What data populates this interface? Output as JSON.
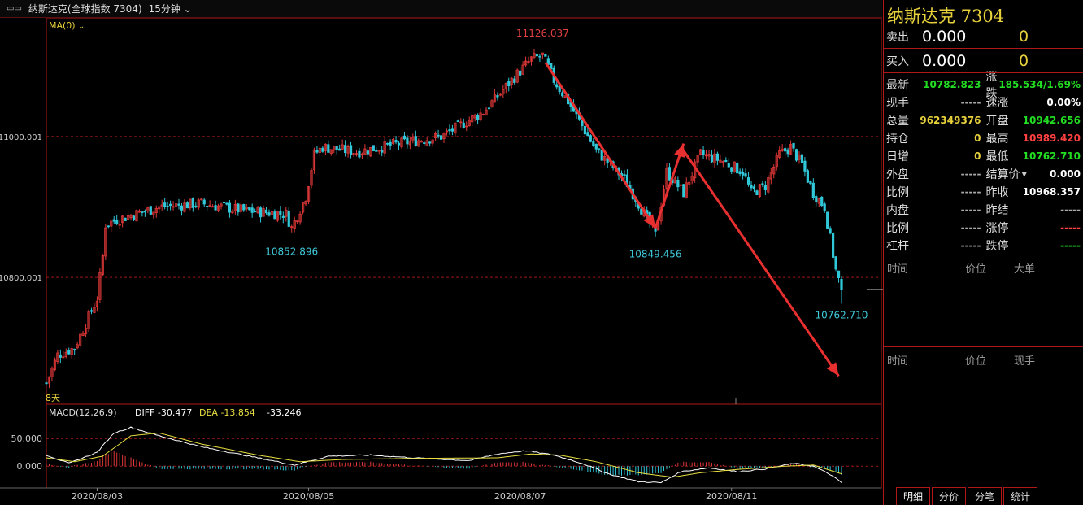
{
  "window": {
    "title": "纳斯达克(全球指数 7304)",
    "period": "15分钟"
  },
  "chart_labels": {
    "ma": "MA(0)",
    "days": "8天",
    "macd_title": "MACD(12,26,9)",
    "diff": "DIFF -30.477",
    "dea": "DEA -13.854",
    "macd_val": "-33.246"
  },
  "chart_data": {
    "type": "candlestick",
    "y_ticks": [
      "11000.001",
      "10800.001"
    ],
    "y_tick_values": [
      11000.001,
      10800.001
    ],
    "ylim": [
      10620,
      11150
    ],
    "macd_ticks": [
      "50.000",
      "0.000"
    ],
    "macd_tick_values": [
      50,
      0
    ],
    "macd_ylim": [
      -35,
      90
    ],
    "x_ticks": [
      "2020/08/03",
      "2020/08/05",
      "2020/08/07",
      "2020/08/11"
    ],
    "x_tick_positions": [
      18,
      93,
      168,
      243
    ],
    "n_bars": 283,
    "annotations": [
      {
        "text": "11126.037",
        "bar": 176,
        "value": 11126.037,
        "color": "#e04040",
        "pos": "above"
      },
      {
        "text": "10852.896",
        "bar": 87,
        "value": 10852.896,
        "color": "#3fc8d8",
        "pos": "below"
      },
      {
        "text": "10849.456",
        "bar": 216,
        "value": 10849.456,
        "color": "#3fc8d8",
        "pos": "below"
      },
      {
        "text": "10762.710",
        "bar": 282,
        "value": 10762.71,
        "color": "#3fc8d8",
        "pos": "below"
      }
    ],
    "anchors": [
      [
        0,
        10650
      ],
      [
        4,
        10690
      ],
      [
        10,
        10700
      ],
      [
        18,
        10770
      ],
      [
        20,
        10830
      ],
      [
        21,
        10875
      ],
      [
        25,
        10882
      ],
      [
        40,
        10900
      ],
      [
        55,
        10905
      ],
      [
        70,
        10895
      ],
      [
        85,
        10890
      ],
      [
        87,
        10870
      ],
      [
        92,
        10915
      ],
      [
        95,
        10975
      ],
      [
        98,
        10985
      ],
      [
        110,
        10978
      ],
      [
        125,
        10990
      ],
      [
        140,
        11000
      ],
      [
        155,
        11035
      ],
      [
        165,
        11080
      ],
      [
        172,
        11110
      ],
      [
        176,
        11115
      ],
      [
        180,
        11080
      ],
      [
        185,
        11050
      ],
      [
        195,
        10980
      ],
      [
        205,
        10940
      ],
      [
        210,
        10905
      ],
      [
        216,
        10860
      ],
      [
        220,
        10950
      ],
      [
        226,
        10920
      ],
      [
        232,
        10975
      ],
      [
        240,
        10965
      ],
      [
        247,
        10950
      ],
      [
        250,
        10920
      ],
      [
        255,
        10930
      ],
      [
        260,
        10975
      ],
      [
        264,
        10985
      ],
      [
        268,
        10960
      ],
      [
        272,
        10920
      ],
      [
        276,
        10900
      ],
      [
        280,
        10810
      ],
      [
        282,
        10782
      ]
    ],
    "macd_anchors": [
      [
        0,
        20
      ],
      [
        8,
        5
      ],
      [
        18,
        25
      ],
      [
        24,
        60
      ],
      [
        30,
        70
      ],
      [
        40,
        55
      ],
      [
        55,
        35
      ],
      [
        75,
        15
      ],
      [
        88,
        2
      ],
      [
        100,
        18
      ],
      [
        115,
        20
      ],
      [
        130,
        15
      ],
      [
        150,
        10
      ],
      [
        160,
        22
      ],
      [
        170,
        28
      ],
      [
        180,
        20
      ],
      [
        190,
        5
      ],
      [
        200,
        -15
      ],
      [
        210,
        -28
      ],
      [
        218,
        -30
      ],
      [
        225,
        -10
      ],
      [
        235,
        -3
      ],
      [
        245,
        -10
      ],
      [
        255,
        -5
      ],
      [
        265,
        5
      ],
      [
        272,
        0
      ],
      [
        278,
        -15
      ],
      [
        282,
        -30
      ]
    ],
    "dea_anchors": [
      [
        0,
        15
      ],
      [
        10,
        8
      ],
      [
        20,
        18
      ],
      [
        30,
        55
      ],
      [
        40,
        60
      ],
      [
        55,
        40
      ],
      [
        75,
        20
      ],
      [
        90,
        8
      ],
      [
        105,
        12
      ],
      [
        130,
        14
      ],
      [
        160,
        15
      ],
      [
        172,
        22
      ],
      [
        182,
        20
      ],
      [
        195,
        8
      ],
      [
        210,
        -12
      ],
      [
        222,
        -20
      ],
      [
        232,
        -12
      ],
      [
        245,
        -6
      ],
      [
        262,
        0
      ],
      [
        272,
        2
      ],
      [
        282,
        -14
      ]
    ]
  },
  "arrows": [
    {
      "from": [
        177,
        11105
      ],
      "to": [
        216,
        10870
      ]
    },
    {
      "from": [
        216,
        10870
      ],
      "to": [
        226,
        10990
      ]
    },
    {
      "from": [
        226,
        10980
      ],
      "to": [
        281,
        10660
      ]
    }
  ],
  "right_panel": {
    "title": "纳斯达克 7304",
    "sell_label": "卖出",
    "sell_price": "0.000",
    "sell_vol": "0",
    "buy_label": "买入",
    "buy_price": "0.000",
    "buy_vol": "0",
    "rows": [
      {
        "k1": "最新",
        "v1": "10782.823",
        "c1": "#22dd22",
        "k2": "涨跌",
        "v2": "185.534/1.69%",
        "c2": "#22dd22"
      },
      {
        "k1": "现手",
        "v1": "-----",
        "c1": "#aaa",
        "k2": "速涨",
        "v2": "0.00%",
        "c2": "#fff"
      },
      {
        "k1": "总量",
        "v1": "962349376",
        "c1": "#e8d23c",
        "k2": "开盘",
        "v2": "10942.656",
        "c2": "#22dd22"
      },
      {
        "k1": "持仓",
        "v1": "0",
        "c1": "#e8d23c",
        "k2": "最高",
        "v2": "10989.420",
        "c2": "#ff4040"
      },
      {
        "k1": "日增",
        "v1": "0",
        "c1": "#e8d23c",
        "k2": "最低",
        "v2": "10762.710",
        "c2": "#22dd22"
      },
      {
        "k1": "外盘",
        "v1": "-----",
        "c1": "#aaa",
        "k2": "结算价",
        "v2": "0.000",
        "c2": "#fff"
      },
      {
        "k1": "比例",
        "v1": "-----",
        "c1": "#aaa",
        "k2": "昨收",
        "v2": "10968.357",
        "c2": "#fff"
      },
      {
        "k1": "内盘",
        "v1": "-----",
        "c1": "#aaa",
        "k2": "昨结",
        "v2": "-----",
        "c2": "#aaa"
      },
      {
        "k1": "比例",
        "v1": "-----",
        "c1": "#aaa",
        "k2": "涨停",
        "v2": "-----",
        "c2": "#ff4040"
      },
      {
        "k1": "杠杆",
        "v1": "-----",
        "c1": "#aaa",
        "k2": "跌停",
        "v2": "-----",
        "c2": "#22dd22"
      }
    ],
    "ticks1": {
      "h1": "时间",
      "h2": "价位",
      "h3": "大单"
    },
    "ticks2": {
      "h1": "时间",
      "h2": "价位",
      "h3": "现手"
    },
    "tabs": [
      "明细",
      "分价",
      "分笔",
      "统计"
    ]
  },
  "colors": {
    "up": "#e03838",
    "down": "#30c8d8",
    "diff": "#ffffff",
    "dea": "#e8e040",
    "border": "#b01818"
  }
}
